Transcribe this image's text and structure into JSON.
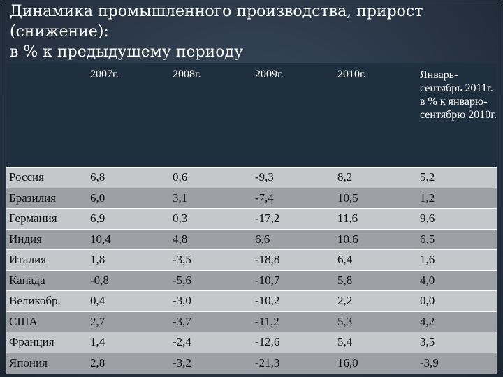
{
  "title": {
    "line1": "Динамика промышленного производства, прирост",
    "line2": "(снижение):",
    "line3": "в % к предыдущему периоду"
  },
  "table": {
    "columns": [
      "",
      "2007г.",
      "2008г.",
      "2009г.",
      "2010г.",
      "Январь-сентябрь 2011г. в % к январю-сентябрю 2010г."
    ],
    "rows": [
      [
        "Россия",
        "6,8",
        "0,6",
        "-9,3",
        "8,2",
        "5,2"
      ],
      [
        "Бразилия",
        "6,0",
        "3,1",
        "-7,4",
        "10,5",
        "1,2"
      ],
      [
        "Германия",
        "6,9",
        "0,3",
        "-17,2",
        "11,6",
        "9,6"
      ],
      [
        "Индия",
        "10,4",
        "4,8",
        "6,6",
        "10,6",
        "6,5"
      ],
      [
        "Италия",
        "1,8",
        "-3,5",
        "-18,8",
        "6,4",
        "1,6"
      ],
      [
        "Канада",
        "-0,8",
        "-5,6",
        "-10,7",
        "5,8",
        "4,0"
      ],
      [
        "Великобр.",
        "0,4",
        "-3,0",
        "-10,2",
        "2,2",
        "0,0"
      ],
      [
        "США",
        "2,7",
        "-3,7",
        "-11,2",
        "5,3",
        "4,2"
      ],
      [
        "Франция",
        "1,4",
        "-2,4",
        "-12,6",
        "5,4",
        "3,5"
      ],
      [
        "Япония",
        "2,8",
        "-3,2",
        "-21,3",
        "16,0",
        "-3,9"
      ]
    ]
  }
}
